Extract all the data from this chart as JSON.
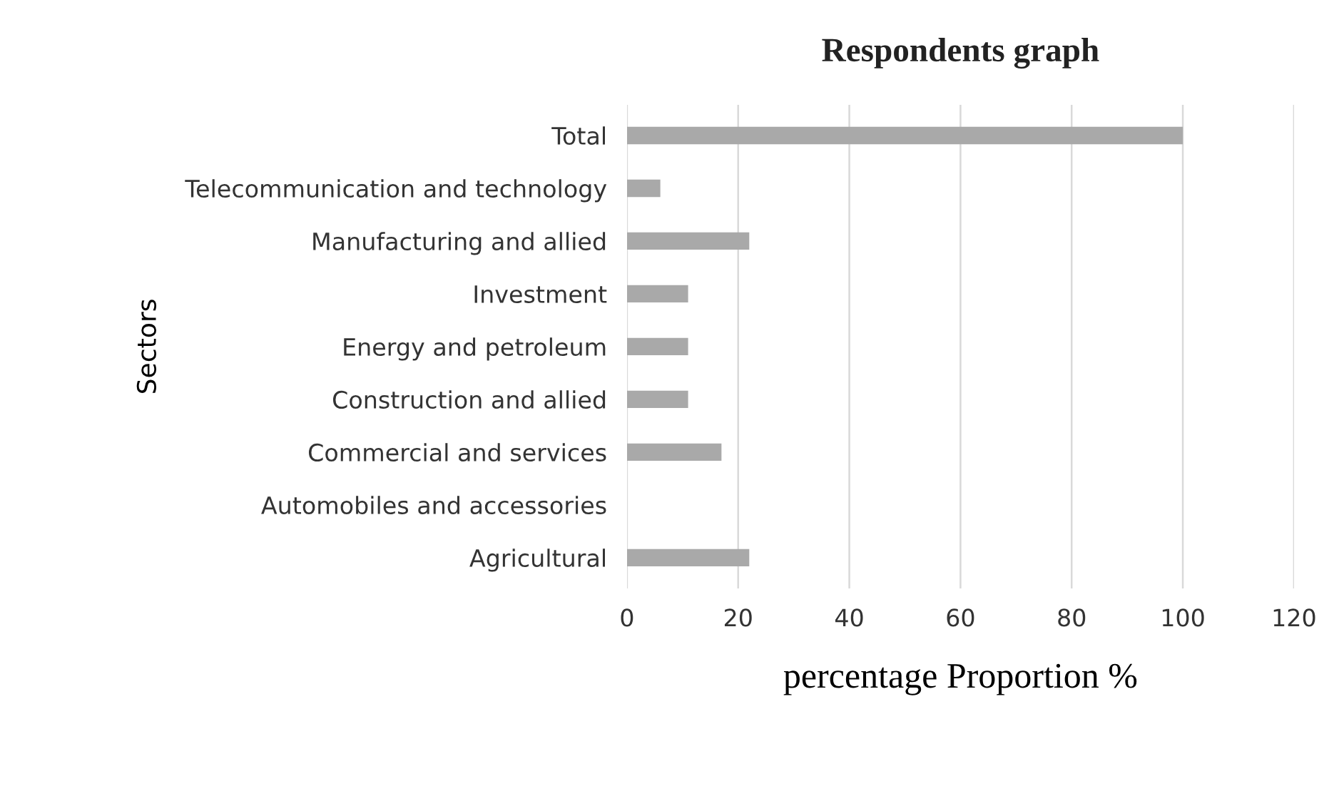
{
  "chart_data": {
    "type": "bar",
    "orientation": "horizontal",
    "title": "Respondents graph",
    "xlabel": "percentage Proportion %",
    "ylabel": "Sectors",
    "categories": [
      "Total",
      "Telecommunication and technology",
      "Manufacturing and allied",
      "Investment",
      "Energy and petroleum",
      "Construction and allied",
      "Commercial and services",
      "Automobiles and accessories",
      "Agricultural"
    ],
    "values": [
      100,
      6,
      22,
      11,
      11,
      11,
      17,
      0,
      22
    ],
    "color": "#a9a9a9",
    "xlim": [
      0,
      120
    ],
    "xticks": [
      0,
      20,
      40,
      60,
      80,
      100,
      120
    ],
    "grid": "x"
  }
}
